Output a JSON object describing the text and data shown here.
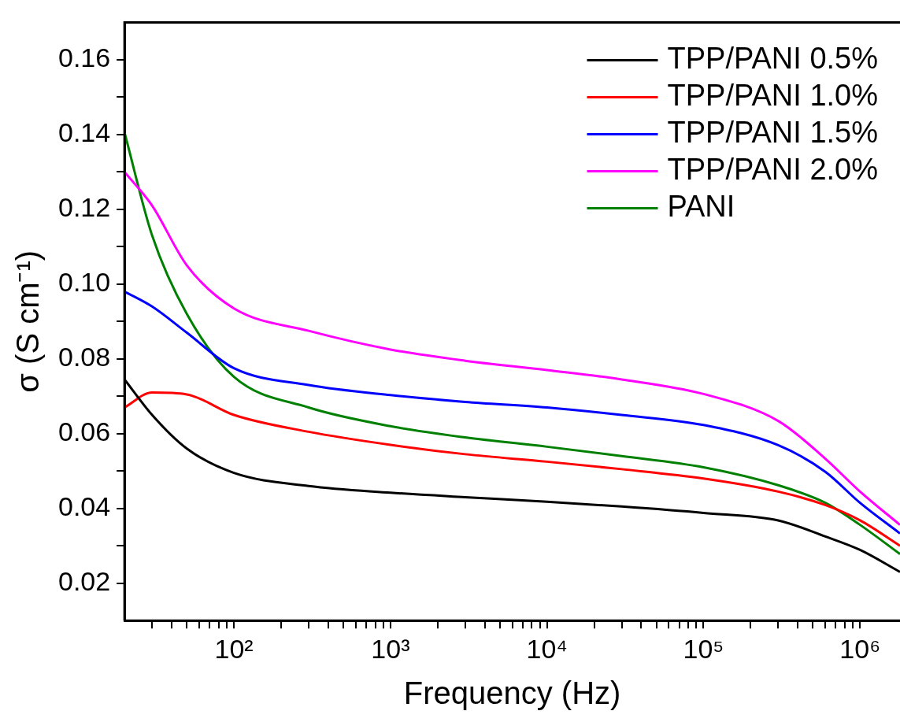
{
  "chart_data": {
    "type": "line",
    "xlabel": "Frequency (Hz)",
    "ylabel": "σ (S cm⁻¹)",
    "log": "x",
    "grid": false,
    "legend": "top right",
    "marker": "none",
    "line_style": "solid",
    "x": [
      20,
      30,
      50,
      100,
      300,
      1000,
      3000,
      10000,
      30000,
      100000,
      300000,
      600000,
      1000000,
      1800000
    ],
    "xlim": [
      20,
      1800000
    ],
    "xticks": [
      {
        "value": 30,
        "label": null
      },
      {
        "value": 40,
        "label": null
      },
      {
        "value": 50,
        "label": null
      },
      {
        "value": 60,
        "label": null
      },
      {
        "value": 70,
        "label": null
      },
      {
        "value": 80,
        "label": null
      },
      {
        "value": 90,
        "label": null
      },
      {
        "value": 100,
        "label": "10²"
      },
      {
        "value": 200,
        "label": null
      },
      {
        "value": 300,
        "label": null
      },
      {
        "value": 400,
        "label": null
      },
      {
        "value": 500,
        "label": null
      },
      {
        "value": 600,
        "label": null
      },
      {
        "value": 700,
        "label": null
      },
      {
        "value": 800,
        "label": null
      },
      {
        "value": 900,
        "label": null
      },
      {
        "value": 1000,
        "label": "10³"
      },
      {
        "value": 2000,
        "label": null
      },
      {
        "value": 3000,
        "label": null
      },
      {
        "value": 4000,
        "label": null
      },
      {
        "value": 5000,
        "label": null
      },
      {
        "value": 6000,
        "label": null
      },
      {
        "value": 7000,
        "label": null
      },
      {
        "value": 8000,
        "label": null
      },
      {
        "value": 9000,
        "label": null
      },
      {
        "value": 10000,
        "label": "10⁴"
      },
      {
        "value": 20000,
        "label": null
      },
      {
        "value": 30000,
        "label": null
      },
      {
        "value": 40000,
        "label": null
      },
      {
        "value": 50000,
        "label": null
      },
      {
        "value": 60000,
        "label": null
      },
      {
        "value": 70000,
        "label": null
      },
      {
        "value": 80000,
        "label": null
      },
      {
        "value": 90000,
        "label": null
      },
      {
        "value": 100000,
        "label": "10⁵"
      },
      {
        "value": 200000,
        "label": null
      },
      {
        "value": 300000,
        "label": null
      },
      {
        "value": 400000,
        "label": null
      },
      {
        "value": 500000,
        "label": null
      },
      {
        "value": 600000,
        "label": null
      },
      {
        "value": 700000,
        "label": null
      },
      {
        "value": 800000,
        "label": null
      },
      {
        "value": 900000,
        "label": null
      },
      {
        "value": 1000000,
        "label": "10⁶"
      }
    ],
    "ylim": [
      0.01,
      0.17
    ],
    "yticks": [
      {
        "value": 0.02,
        "label": "0.02"
      },
      {
        "value": 0.03,
        "label": null
      },
      {
        "value": 0.04,
        "label": "0.04"
      },
      {
        "value": 0.05,
        "label": null
      },
      {
        "value": 0.06,
        "label": "0.06"
      },
      {
        "value": 0.07,
        "label": null
      },
      {
        "value": 0.08,
        "label": "0.08"
      },
      {
        "value": 0.09,
        "label": null
      },
      {
        "value": 0.1,
        "label": "0.10"
      },
      {
        "value": 0.11,
        "label": null
      },
      {
        "value": 0.12,
        "label": "0.12"
      },
      {
        "value": 0.13,
        "label": null
      },
      {
        "value": 0.14,
        "label": "0.14"
      },
      {
        "value": 0.15,
        "label": null
      },
      {
        "value": 0.16,
        "label": "0.16"
      }
    ],
    "series": [
      {
        "name": "TPP/PANI 0.5%",
        "color": "#000000",
        "values": [
          0.0745,
          0.065,
          0.056,
          0.0495,
          0.046,
          0.0442,
          0.043,
          0.0418,
          0.0405,
          0.0388,
          0.0368,
          0.0325,
          0.0289,
          0.023
        ]
      },
      {
        "name": "TPP/PANI 1.0%",
        "color": "#ff0000",
        "values": [
          0.067,
          0.071,
          0.0705,
          0.065,
          0.0605,
          0.057,
          0.0545,
          0.0525,
          0.0505,
          0.048,
          0.0445,
          0.0409,
          0.0368,
          0.03
        ]
      },
      {
        "name": "TPP/PANI 1.5%",
        "color": "#0000ff",
        "values": [
          0.098,
          0.094,
          0.087,
          0.0775,
          0.073,
          0.0703,
          0.0685,
          0.067,
          0.065,
          0.0623,
          0.0569,
          0.0498,
          0.0415,
          0.0333
        ]
      },
      {
        "name": "TPP/PANI 2.0%",
        "color": "#ff00ff",
        "values": [
          0.13,
          0.121,
          0.105,
          0.0935,
          0.0875,
          0.0825,
          0.0795,
          0.077,
          0.0745,
          0.0706,
          0.0634,
          0.0533,
          0.0445,
          0.0356
        ]
      },
      {
        "name": "PANI",
        "color": "#008000",
        "values": [
          0.1405,
          0.113,
          0.092,
          0.0752,
          0.067,
          0.062,
          0.059,
          0.0565,
          0.054,
          0.051,
          0.0462,
          0.0415,
          0.0356,
          0.0278
        ]
      }
    ]
  }
}
